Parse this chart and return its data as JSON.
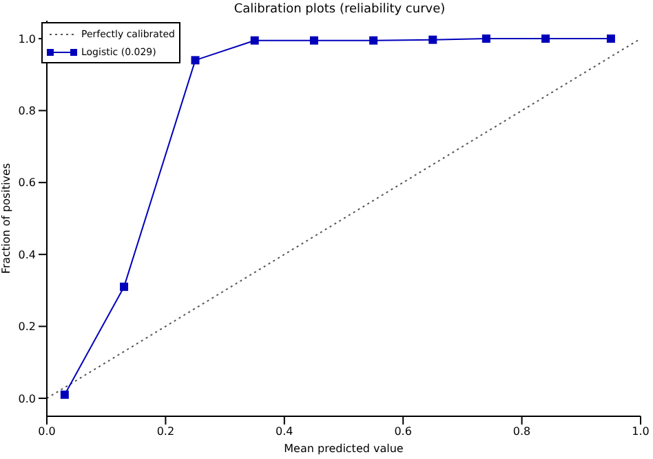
{
  "chart_data": {
    "type": "line",
    "title": "Calibration plots  (reliability curve)",
    "xlabel": "Mean predicted value",
    "ylabel": "Fraction of positives",
    "xlim": [
      0,
      1
    ],
    "ylim": [
      -0.05,
      1.05
    ],
    "xticks": [
      {
        "value": 0,
        "label": "0.0"
      },
      {
        "value": 0.2,
        "label": "0.2"
      },
      {
        "value": 0.4,
        "label": "0.4"
      },
      {
        "value": 0.6,
        "label": "0.6"
      },
      {
        "value": 0.8,
        "label": "0.8"
      },
      {
        "value": 1,
        "label": "1.0"
      }
    ],
    "yticks": [
      {
        "value": 0,
        "label": "0.0"
      },
      {
        "value": 0.2,
        "label": "0.2"
      },
      {
        "value": 0.4,
        "label": "0.4"
      },
      {
        "value": 0.6,
        "label": "0.6"
      },
      {
        "value": 0.8,
        "label": "0.8"
      },
      {
        "value": 1,
        "label": "1.0"
      }
    ],
    "grid": false,
    "legend": "top left",
    "series": [
      {
        "name": "Perfectly calibrated",
        "color": "#555555",
        "x": [
          0,
          1
        ],
        "values": [
          0,
          1
        ],
        "line_style": "dotted",
        "marker": "none"
      },
      {
        "name": "Logistic (0.029)",
        "color": "#0000bb",
        "x": [
          0.03,
          0.13,
          0.25,
          0.35,
          0.45,
          0.55,
          0.65,
          0.74,
          0.84,
          0.95
        ],
        "values": [
          0.01,
          0.31,
          0.94,
          0.995,
          0.995,
          0.995,
          0.997,
          1.0,
          1.0,
          1.0
        ],
        "line_style": "solid",
        "marker": "square"
      }
    ]
  }
}
